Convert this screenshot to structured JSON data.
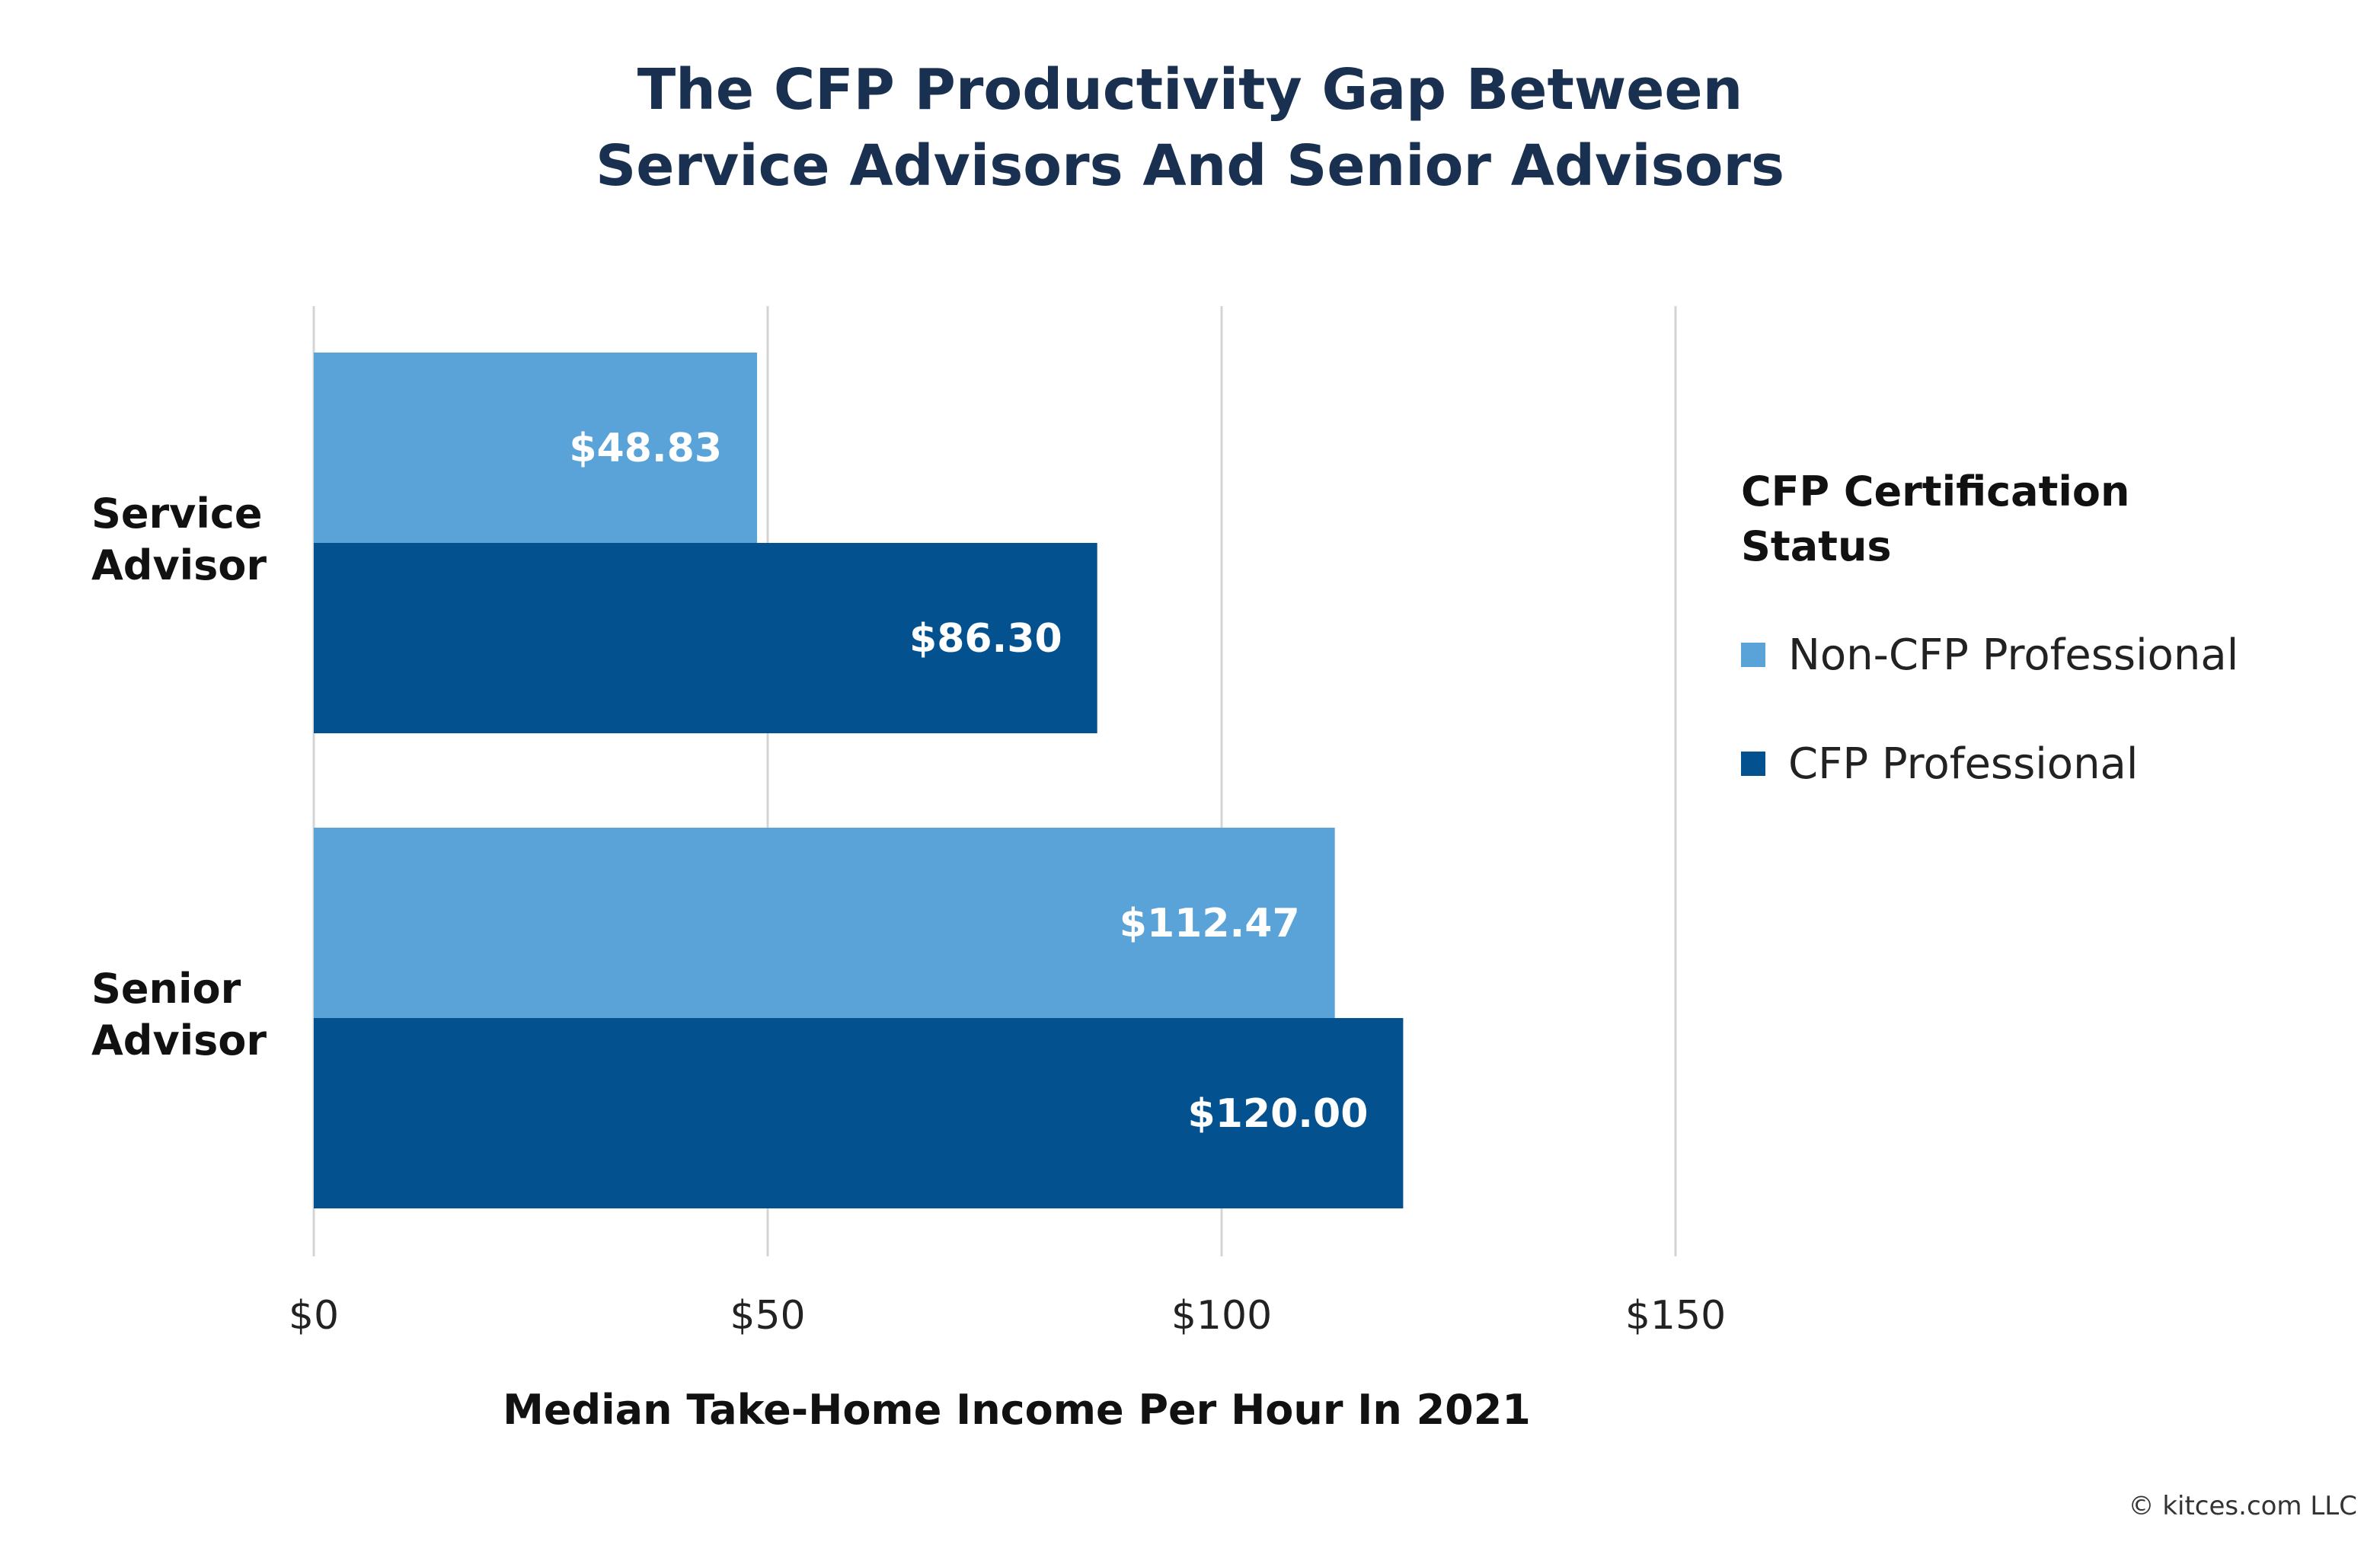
{
  "chart_data": {
    "type": "bar",
    "orientation": "horizontal",
    "title_lines": [
      "The CFP Productivity Gap Between",
      "Service Advisors And Senior Advisors"
    ],
    "categories": [
      [
        "Service",
        "Advisor"
      ],
      [
        "Senior",
        "Advisor"
      ]
    ],
    "series": [
      {
        "name": "Non-CFP Professional",
        "color": "#5aa3d8",
        "values": [
          48.83,
          112.47
        ],
        "labels": [
          "$48.83",
          "$112.47"
        ]
      },
      {
        "name": "CFP Professional",
        "color": "#03528f",
        "values": [
          86.3,
          120.0
        ],
        "labels": [
          "$86.30",
          "$120.00"
        ]
      }
    ],
    "xlabel": "Median Take-Home Income Per Hour In 2021",
    "xlim": [
      0,
      150
    ],
    "xticks": [
      0,
      50,
      100,
      150
    ],
    "xtick_labels": [
      "$0",
      "$50",
      "$100",
      "$150"
    ],
    "grid": "vertical",
    "legend": {
      "title": "CFP Certification Status",
      "placement": "right"
    }
  },
  "legend_title_lines": [
    "CFP Certification",
    "Status"
  ],
  "copyright": "© kitces.com LLC"
}
